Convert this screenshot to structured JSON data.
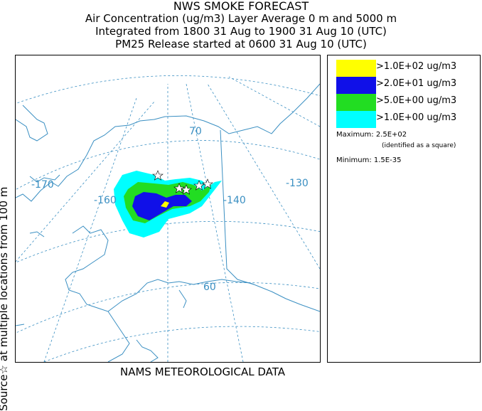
{
  "header": {
    "title": "NWS SMOKE FORECAST",
    "line2": "Air Concentration (ug/m3) Layer Average    0 m and  5000 m",
    "line3": "Integrated from 1800 31 Aug to 1900 31 Aug 10 (UTC)",
    "line4": "PM25 Release started at 0600 31 Aug 10 (UTC)"
  },
  "side_label": {
    "source": "Source",
    "star": "☆",
    "rest": " at multiple locations   from   100 m"
  },
  "footer": "NAMS METEOROLOGICAL DATA",
  "map": {
    "longitude_labels": [
      "-170",
      "-160",
      "-140",
      "-130"
    ],
    "latitude_labels": [
      "70",
      "60"
    ],
    "colors": {
      "coast": "#3a8fc2",
      "graticule": "#3a8fc2",
      "cyan": "#00ffff",
      "green": "#22dd22",
      "blue": "#1010e8",
      "yellow": "#ffff00"
    }
  },
  "legend": {
    "items": [
      {
        "label": ">1.0E+02 ug/m3",
        "color": "#ffff00"
      },
      {
        "label": ">2.0E+01 ug/m3",
        "color": "#1010e8"
      },
      {
        "label": ">5.0E+00 ug/m3",
        "color": "#22dd22"
      },
      {
        "label": ">1.0E+00 ug/m3",
        "color": "#00ffff"
      }
    ],
    "maximum_label": "Maximum: 2.5E+02",
    "maximum_note": "(identified as a square)",
    "minimum_label": "Minimum: 1.5E-35"
  }
}
